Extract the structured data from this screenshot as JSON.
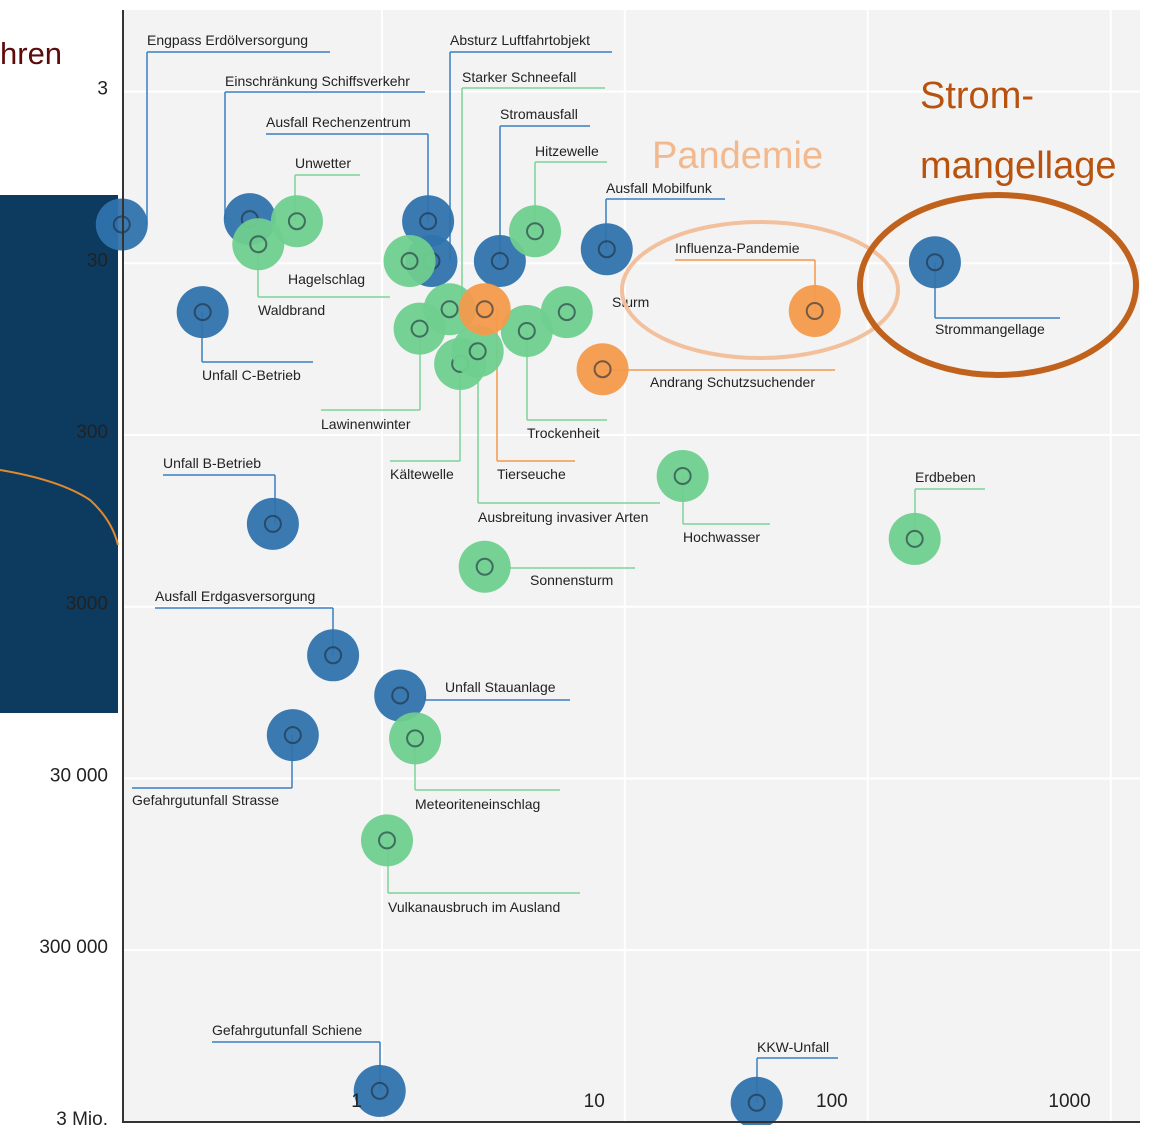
{
  "chart_data": {
    "type": "scatter",
    "annotations": [
      "hren",
      "Pandemie",
      "Strom-",
      "mangellage"
    ],
    "xscale": "log",
    "yscale": "log",
    "grid": true,
    "xlim": [
      0.086,
      1320
    ],
    "xticks": [
      1,
      10,
      100,
      1000
    ],
    "ylim": [
      3300000,
      1.06
    ],
    "yticks": [
      3,
      30,
      300,
      3000,
      {
        "value": 30000,
        "label": "30 000"
      },
      {
        "value": 300000,
        "label": "300 000"
      },
      {
        "value": 3000000,
        "label": "3 Mio."
      }
    ],
    "series": [
      {
        "color": "#2f73ad",
        "labels": [
          "Engpass Erdölversorgung",
          "Einschränkung Schiffsverkehr",
          "Ausfall Rechenzentrum",
          "Absturz Luftfahrtobjekt",
          "Stromausfall",
          "Ausfall Mobilfunk",
          "Strommangellage",
          "Unfall C-Betrieb",
          "Unfall B-Betrieb",
          "Ausfall Erdgasversorgung",
          "Unfall Stauanlage",
          "Gefahrgutunfall Strasse",
          "Gefahrgutunfall Schiene",
          "KKW-Unfall"
        ],
        "x": [
          0.085,
          0.286,
          1.55,
          1.6,
          3.06,
          8.43,
          189,
          0.183,
          0.356,
          0.63,
          1.19,
          0.43,
          0.98,
          34.9
        ],
        "values": [
          18.8,
          17.5,
          18,
          30.7,
          30.7,
          26.2,
          31.2,
          60.9,
          1042,
          6070,
          10400,
          17700,
          2090000,
          2450000
        ]
      },
      {
        "color": "#6fcf8e",
        "labels": [
          "Unwetter",
          "Waldbrand",
          "Hagelschlag",
          "Starker Schneefall",
          "Hitzewelle",
          "Sturm",
          "Lawinenwinter",
          "Trockenheit",
          "Kältewelle",
          "Ausbreitung invasiver Arten",
          "Hochwasser",
          "Erdbeben",
          "Sonnensturm",
          "Meteoriteneinschlag",
          "Vulkanausbruch im Ausland"
        ],
        "x": [
          0.447,
          0.31,
          1.3,
          1.9,
          4.27,
          5.77,
          1.43,
          3.95,
          2.1,
          2.48,
          17.3,
          156,
          2.65,
          1.37,
          1.05
        ],
        "values": [
          18,
          24.5,
          30.7,
          58.6,
          20.6,
          60.9,
          76,
          78.4,
          122,
          103,
          548,
          1275,
          1852,
          18500,
          72600
        ]
      },
      {
        "color": "#f39a4b",
        "labels": [
          "Influenza-Pandemie",
          "Andrang Schutzsuchender",
          "Tierseuche"
        ],
        "x": [
          60.5,
          8.1,
          2.65
        ],
        "values": [
          60,
          131,
          58.6
        ]
      }
    ]
  }
}
